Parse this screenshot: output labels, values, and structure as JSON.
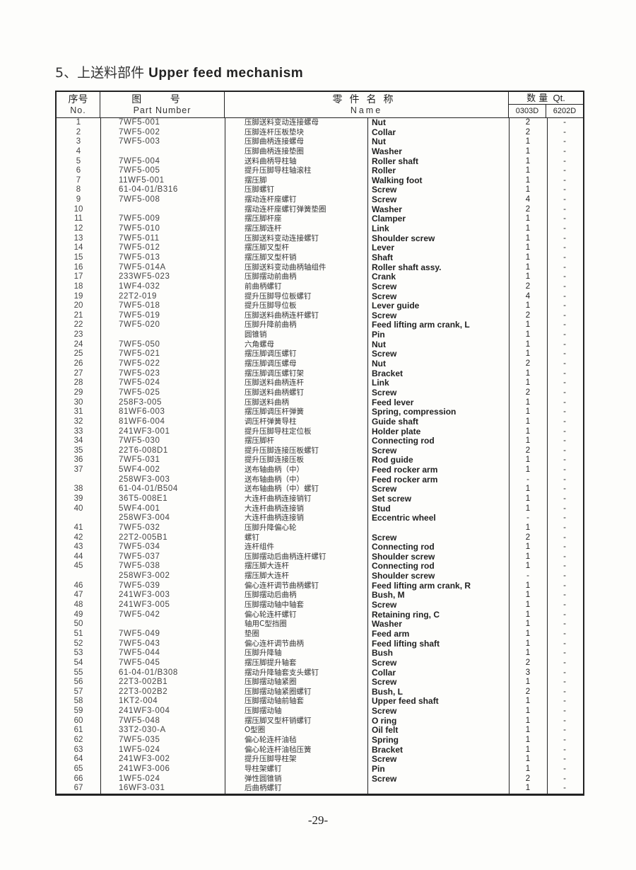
{
  "title": {
    "number": "5、",
    "chinese": "上送料部件",
    "english": "Upper feed mechanism"
  },
  "header": {
    "no_cn": "序号",
    "no_en": "No.",
    "part_cn": "图 号",
    "part_en": "Part Number",
    "name_cn": "零件名称",
    "name_en": "Name",
    "qty_cn": "数 量",
    "qty_en": "Qt.",
    "qty_col1": "0303D",
    "qty_col2": "6202D"
  },
  "rows": [
    [
      "1",
      "7WF5-001",
      "压脚送料变动连接螺母",
      "Nut",
      "2",
      "-"
    ],
    [
      "2",
      "7WF5-002",
      "压脚连杆压板垫块",
      "Collar",
      "2",
      "-"
    ],
    [
      "3",
      "7WF5-003",
      "压脚曲柄连接螺母",
      "Nut",
      "1",
      "-"
    ],
    [
      "4",
      "",
      "压脚曲柄连接垫圈",
      "Washer",
      "1",
      "-"
    ],
    [
      "5",
      "7WF5-004",
      "送料曲柄导柱轴",
      "Roller shaft",
      "1",
      "-"
    ],
    [
      "6",
      "7WF5-005",
      "提升压脚导柱轴滚柱",
      "Roller",
      "1",
      "-"
    ],
    [
      "7",
      "11WF5-001",
      "摆压脚",
      "Walking foot",
      "1",
      "-"
    ],
    [
      "8",
      "61-04-01/B316",
      "压脚螺钉",
      "Screw",
      "1",
      "-"
    ],
    [
      "9",
      "7WF5-008",
      "摆动连杆座螺钉",
      "Screw",
      "4",
      "-"
    ],
    [
      "10",
      "",
      "摆动连杆座螺钉弹簧垫圈",
      "Washer",
      "2",
      "-"
    ],
    [
      "11",
      "7WF5-009",
      "摆压脚杆座",
      "Clamper",
      "1",
      "-"
    ],
    [
      "12",
      "7WF5-010",
      "摆压脚连杆",
      "Link",
      "1",
      "-"
    ],
    [
      "13",
      "7WF5-011",
      "压脚送料变动连接螺钉",
      "Shoulder screw",
      "1",
      "-"
    ],
    [
      "14",
      "7WF5-012",
      "摆压脚叉型杆",
      "Lever",
      "1",
      "-"
    ],
    [
      "15",
      "7WF5-013",
      "摆压脚叉型杆销",
      "Shaft",
      "1",
      "-"
    ],
    [
      "16",
      "7WF5-014A",
      "压脚送料变动曲柄轴组件",
      "Roller shaft assy.",
      "1",
      "-"
    ],
    [
      "17",
      "233WF5-023",
      "压脚摆动前曲柄",
      "Crank",
      "1",
      "-"
    ],
    [
      "18",
      "1WF4-032",
      "前曲柄螺钉",
      "Screw",
      "2",
      "-"
    ],
    [
      "19",
      "22T2-019",
      "提升压脚导位板螺钉",
      "Screw",
      "4",
      "-"
    ],
    [
      "20",
      "7WF5-018",
      "提升压脚导位板",
      "Lever guide",
      "1",
      "-"
    ],
    [
      "21",
      "7WF5-019",
      "压脚送料曲柄连杆螺钉",
      "Screw",
      "2",
      "-"
    ],
    [
      "22",
      "7WF5-020",
      "压脚升降前曲柄",
      "Feed lifting arm crank, L",
      "1",
      "-"
    ],
    [
      "23",
      "",
      "圆锥销",
      "Pin",
      "1",
      "-"
    ],
    [
      "24",
      "7WF5-050",
      "六角螺母",
      "Nut",
      "1",
      "-"
    ],
    [
      "25",
      "7WF5-021",
      "摆压脚调压螺钉",
      "Screw",
      "1",
      "-"
    ],
    [
      "26",
      "7WF5-022",
      "摆压脚调压螺母",
      "Nut",
      "2",
      "-"
    ],
    [
      "27",
      "7WF5-023",
      "摆压脚调压螺钉架",
      "Bracket",
      "1",
      "-"
    ],
    [
      "28",
      "7WF5-024",
      "压脚送料曲柄连杆",
      "Link",
      "1",
      "-"
    ],
    [
      "29",
      "7WF5-025",
      "压脚送料曲柄螺钉",
      "Screw",
      "2",
      "-"
    ],
    [
      "30",
      "258F3-005",
      "压脚送料曲柄",
      "Feed lever",
      "1",
      "-"
    ],
    [
      "31",
      "81WF6-003",
      "摆压脚调压杆弹簧",
      "Spring, compression",
      "1",
      "-"
    ],
    [
      "32",
      "81WF6-004",
      "调压杆弹簧导柱",
      "Guide shaft",
      "1",
      "-"
    ],
    [
      "33",
      "241WF3-001",
      "提升压脚导柱定位板",
      "Holder plate",
      "1",
      "-"
    ],
    [
      "34",
      "7WF5-030",
      "摆压脚杆",
      "Connecting rod",
      "1",
      "-"
    ],
    [
      "35",
      "22T6-008D1",
      "提升压脚连接压板螺钉",
      "Screw",
      "2",
      "-"
    ],
    [
      "36",
      "7WF5-031",
      "提升压脚连接压板",
      "Rod guide",
      "1",
      "-"
    ],
    [
      "37",
      "5WF4-002",
      "送布轴曲柄（中）",
      "Feed rocker arm",
      "1",
      "-"
    ],
    [
      "",
      "258WF3-003",
      "送布轴曲柄（中）",
      "Feed rocker arm",
      "-",
      "-"
    ],
    [
      "38",
      "61-04-01/B504",
      "送布轴曲柄（中）螺钉",
      "Screw",
      "1",
      "-"
    ],
    [
      "39",
      "36T5-008E1",
      "大连杆曲柄连接销钉",
      "Set screw",
      "1",
      "-"
    ],
    [
      "40",
      "5WF4-001",
      "大连杆曲柄连接销",
      "Stud",
      "1",
      "-"
    ],
    [
      "",
      "258WF3-004",
      "大连杆曲柄连接销",
      "Eccentric wheel",
      "-",
      "-"
    ],
    [
      "41",
      "7WF5-032",
      "压脚升降偏心轮",
      "",
      "1",
      "-"
    ],
    [
      "42",
      "22T2-005B1",
      "螺钉",
      "Screw",
      "2",
      "-"
    ],
    [
      "43",
      "7WF5-034",
      "连杆组件",
      "Connecting rod",
      "1",
      "-"
    ],
    [
      "44",
      "7WF5-037",
      "压脚摆动后曲柄连杆螺钉",
      "Shoulder screw",
      "1",
      "-"
    ],
    [
      "45",
      "7WF5-038",
      "摆压脚大连杆",
      "Connecting rod",
      "1",
      "-"
    ],
    [
      "",
      "258WF3-002",
      "摆压脚大连杆",
      "Shoulder screw",
      "-",
      "-"
    ],
    [
      "46",
      "7WF5-039",
      "偏心连杆调节曲柄螺钉",
      "Feed lifting arm crank, R",
      "1",
      "-"
    ],
    [
      "47",
      "241WF3-003",
      "压脚摆动后曲柄",
      "Bush, M",
      "1",
      "-"
    ],
    [
      "48",
      "241WF3-005",
      "压脚摆动轴中轴套",
      "Screw",
      "1",
      "-"
    ],
    [
      "49",
      "7WF5-042",
      "偏心轮连杆螺钉",
      "Retaining ring, C",
      "1",
      "-"
    ],
    [
      "50",
      "",
      "轴用C型挡圈",
      "Washer",
      "1",
      "-"
    ],
    [
      "51",
      "7WF5-049",
      "垫圈",
      "Feed arm",
      "1",
      "-"
    ],
    [
      "52",
      "7WF5-043",
      "偏心连杆调节曲柄",
      "Feed lifting shaft",
      "1",
      "-"
    ],
    [
      "53",
      "7WF5-044",
      "压脚升降轴",
      "Bush",
      "1",
      "-"
    ],
    [
      "54",
      "7WF5-045",
      "摆压脚提升轴套",
      "Screw",
      "2",
      "-"
    ],
    [
      "55",
      "61-04-01/B308",
      "摆动升降轴套支头螺钉",
      "Collar",
      "3",
      "-"
    ],
    [
      "56",
      "22T3-002B1",
      "压脚摆动轴紧圈",
      "Screw",
      "1",
      "-"
    ],
    [
      "57",
      "22T3-002B2",
      "压脚摆动轴紧圈螺钉",
      "Bush, L",
      "2",
      "-"
    ],
    [
      "58",
      "1KT2-004",
      "压脚摆动轴前轴套",
      "Upper feed shaft",
      "1",
      "-"
    ],
    [
      "59",
      "241WF3-004",
      "压脚摆动轴",
      "Screw",
      "1",
      "-"
    ],
    [
      "60",
      "7WF5-048",
      "摆压脚叉型杆销螺钉",
      "O ring",
      "1",
      "-"
    ],
    [
      "61",
      "33T2-030-A",
      "O型圈",
      "Oil felt",
      "1",
      "-"
    ],
    [
      "62",
      "7WF5-035",
      "偏心轮连杆油毡",
      "Spring",
      "1",
      "-"
    ],
    [
      "63",
      "1WF5-024",
      "偏心轮连杆油毡压簧",
      "Bracket",
      "1",
      "-"
    ],
    [
      "64",
      "241WF3-002",
      "提升压脚导柱架",
      "Screw",
      "1",
      "-"
    ],
    [
      "65",
      "241WF3-006",
      "导柱架螺钉",
      "Pin",
      "1",
      "-"
    ],
    [
      "66",
      "1WF5-024",
      "弹性圆锥销",
      "Screw",
      "2",
      "-"
    ],
    [
      "67",
      "16WF3-031",
      "后曲柄螺钉",
      "",
      "1",
      "-"
    ]
  ],
  "page_number": "-29-"
}
